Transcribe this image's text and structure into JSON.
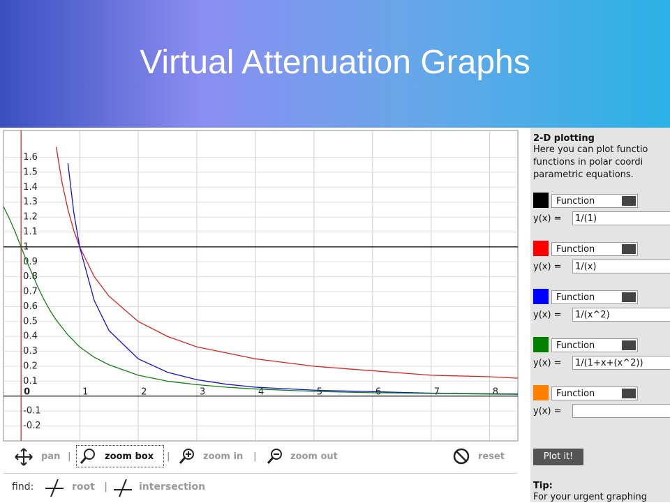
{
  "title": "Virtual Attenuation Graphs",
  "chart_data": {
    "type": "line",
    "x": [
      -0.3,
      -0.2,
      -0.1,
      0,
      0.1,
      0.2,
      0.3,
      0.4,
      0.5,
      0.6,
      0.7,
      0.8,
      0.9,
      1,
      1.25,
      1.5,
      2,
      2.5,
      3,
      3.5,
      4,
      5,
      6,
      7,
      8,
      8.48
    ],
    "series": [
      {
        "color": "#000000",
        "values": [
          1,
          1,
          1,
          1,
          1,
          1,
          1,
          1,
          1,
          1,
          1,
          1,
          1,
          1,
          1,
          1,
          1,
          1,
          1,
          1,
          1,
          1,
          1,
          1,
          1,
          1
        ]
      },
      {
        "color": "#e02020",
        "values": [
          null,
          null,
          null,
          null,
          null,
          null,
          null,
          null,
          null,
          1.67,
          1.43,
          1.25,
          1.11,
          1,
          0.8,
          0.67,
          0.5,
          0.4,
          0.33,
          0.29,
          0.25,
          0.2,
          0.17,
          0.14,
          0.13,
          0.12
        ]
      },
      {
        "color": "#1010e0",
        "values": [
          null,
          null,
          null,
          null,
          null,
          null,
          null,
          null,
          null,
          null,
          null,
          1.56,
          1.23,
          1,
          0.64,
          0.44,
          0.25,
          0.16,
          0.11,
          0.08,
          0.06,
          0.04,
          0.03,
          0.02,
          0.016,
          0.014
        ]
      },
      {
        "color": "#108010",
        "values": [
          1.27,
          1.19,
          1.1,
          1,
          0.9,
          0.81,
          0.72,
          0.64,
          0.57,
          0.51,
          0.46,
          0.41,
          0.37,
          0.33,
          0.26,
          0.21,
          0.14,
          0.1,
          0.077,
          0.06,
          0.048,
          0.032,
          0.023,
          0.018,
          0.014,
          0.012
        ]
      }
    ],
    "xlim": [
      -0.3,
      8.48
    ],
    "ylim": [
      -0.3,
      1.78
    ],
    "xticks": [
      0,
      1,
      2,
      3,
      4,
      5,
      6,
      7,
      8
    ],
    "yticks": [
      -0.2,
      -0.1,
      0.1,
      0.2,
      0.3,
      0.4,
      0.5,
      0.6,
      0.7,
      0.8,
      0.9,
      1,
      1.1,
      1.2,
      1.3,
      1.4,
      1.5,
      1.6
    ],
    "grid": true,
    "y_axis_color": "#e02020"
  },
  "toolbar": {
    "items": [
      "pan",
      "zoom box",
      "zoom in",
      "zoom out",
      "reset"
    ],
    "find": "find:",
    "find_items": [
      "root",
      "intersection"
    ]
  },
  "sidebar": {
    "heading": "2-D plotting",
    "text": [
      "Here you can plot functio",
      "functions in polar coordi",
      "parametric equations."
    ],
    "functions": [
      {
        "color": "#000000",
        "type": "Function",
        "label": "y(x) =",
        "expr": "1/(1)"
      },
      {
        "color": "#ff0000",
        "type": "Function",
        "label": "y(x) =",
        "expr": "1/(x)"
      },
      {
        "color": "#0000ff",
        "type": "Function",
        "label": "y(x) =",
        "expr": "1/(x^2)"
      },
      {
        "color": "#008000",
        "type": "Function",
        "label": "y(x) =",
        "expr": "1/(1+x+(x^2))"
      },
      {
        "color": "#ff8000",
        "type": "Function",
        "label": "y(x) ="
      }
    ],
    "button": "Plot it!",
    "tip": "Tip:",
    "tip_text": "For your urgent graphing"
  }
}
